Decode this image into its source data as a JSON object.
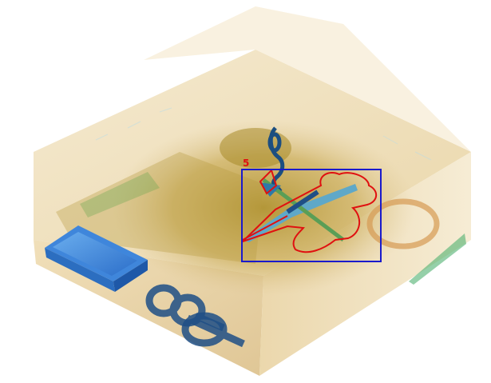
{
  "scan": {
    "kind": "x-ray-3d-volume-render",
    "colors": {
      "background": "#ffffff",
      "casing": "#e8d4a8",
      "organic": "#b8942c",
      "metal_blue": "#3a7bd5",
      "detection_box": "#1a1acc",
      "threat_outline": "#e01010"
    }
  },
  "detections": [
    {
      "label": "5",
      "object": "threat-item"
    }
  ],
  "icons": [
    "knife-icon",
    "scissors-icon",
    "scissors-icon"
  ]
}
